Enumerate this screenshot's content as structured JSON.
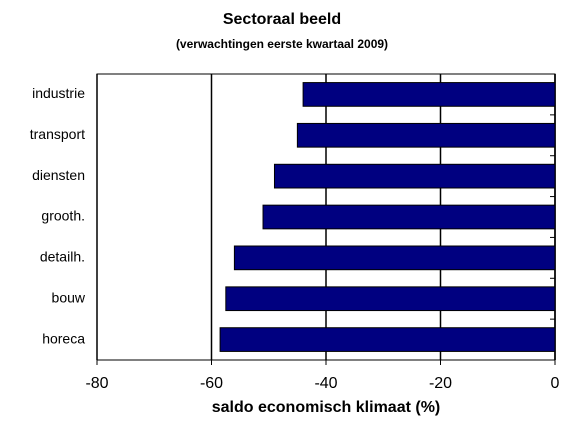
{
  "chart_data": {
    "type": "barh",
    "title": "Sectoraal beeld",
    "subtitle": "(verwachtingen eerste kwartaal 2009)",
    "x_label": "saldo economisch klimaat (%)",
    "categories": [
      "industrie",
      "transport",
      "diensten",
      "grooth.",
      "detailh.",
      "bouw",
      "horeca"
    ],
    "values": [
      -44,
      -45,
      -49,
      -51,
      -56,
      -57.5,
      -58.5
    ],
    "color": "#000080",
    "xlim": [
      -80,
      0
    ],
    "xticks": [
      -80,
      -60,
      -40,
      -20,
      0
    ],
    "grid": true
  }
}
